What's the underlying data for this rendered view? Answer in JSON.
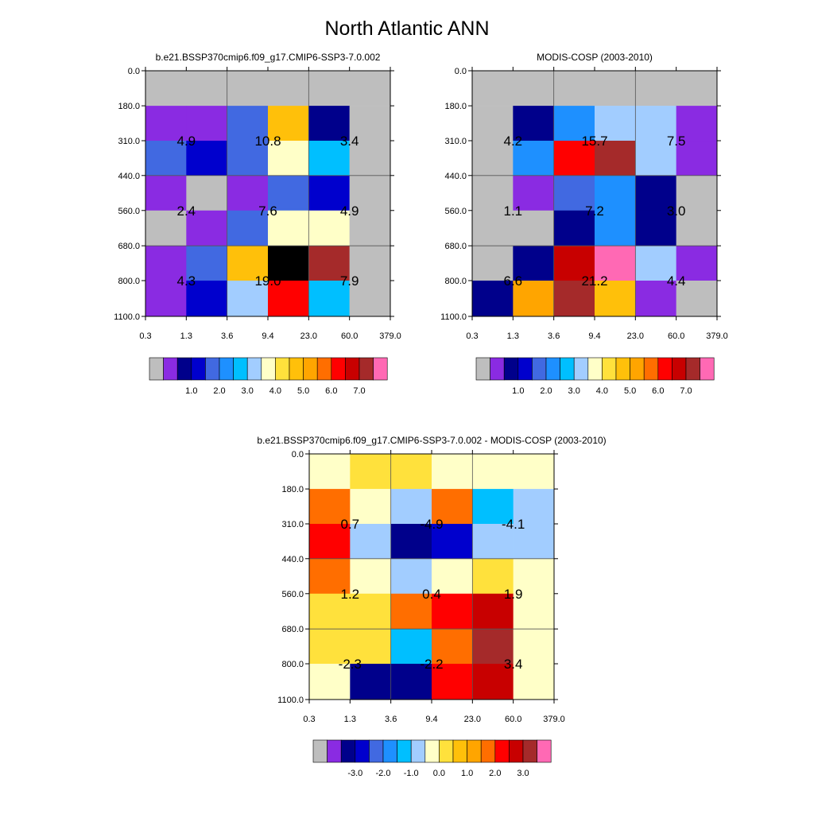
{
  "title": "North Atlantic ANN",
  "chart_data": [
    {
      "type": "heatmap",
      "title": "b.e21.BSSP370cmip6.f09_g17.CMIP6-SSP3-7.0.002",
      "x_ticks": [
        "0.3",
        "1.3",
        "3.6",
        "9.4",
        "23.0",
        "60.0",
        "379.0"
      ],
      "y_ticks": [
        "0.0",
        "180.0",
        "310.0",
        "440.0",
        "560.0",
        "680.0",
        "800.0",
        "1100.0"
      ],
      "cells": [
        [
          0,
          0,
          0,
          0,
          0,
          0
        ],
        [
          1,
          1,
          4,
          10,
          2,
          0
        ],
        [
          4,
          3,
          4,
          8,
          6,
          0
        ],
        [
          1,
          0,
          1,
          4,
          3,
          0
        ],
        [
          0,
          1,
          4,
          8,
          8,
          0
        ],
        [
          1,
          4,
          10,
          18,
          15,
          0
        ],
        [
          1,
          3,
          7,
          13,
          6,
          0
        ]
      ],
      "annotations": [
        {
          "row": 1,
          "col": 0,
          "text": "4.9"
        },
        {
          "row": 1,
          "col": 2,
          "text": "10.8"
        },
        {
          "row": 1,
          "col": 4,
          "text": "3.4"
        },
        {
          "row": 3,
          "col": 0,
          "text": "2.4"
        },
        {
          "row": 3,
          "col": 2,
          "text": "7.6"
        },
        {
          "row": 3,
          "col": 4,
          "text": "4.9"
        },
        {
          "row": 5,
          "col": 0,
          "text": "4.3"
        },
        {
          "row": 5,
          "col": 2,
          "text": "19.0"
        },
        {
          "row": 5,
          "col": 4,
          "text": "7.9"
        }
      ],
      "colorbar_labels": [
        "1.0",
        "2.0",
        "3.0",
        "4.0",
        "5.0",
        "6.0",
        "7.0"
      ]
    },
    {
      "type": "heatmap",
      "title": "MODIS-COSP (2003-2010)",
      "x_ticks": [
        "0.3",
        "1.3",
        "3.6",
        "9.4",
        "23.0",
        "60.0",
        "379.0"
      ],
      "y_ticks": [
        "0.0",
        "180.0",
        "310.0",
        "440.0",
        "560.0",
        "680.0",
        "800.0",
        "1100.0"
      ],
      "cells": [
        [
          0,
          0,
          0,
          0,
          0,
          0
        ],
        [
          0,
          2,
          5,
          7,
          7,
          1
        ],
        [
          0,
          5,
          13,
          15,
          7,
          1
        ],
        [
          0,
          1,
          4,
          5,
          2,
          0
        ],
        [
          0,
          0,
          2,
          5,
          2,
          0
        ],
        [
          0,
          2,
          14,
          16,
          7,
          1
        ],
        [
          2,
          11,
          15,
          10,
          1,
          0
        ]
      ],
      "annotations": [
        {
          "row": 1,
          "col": 0,
          "text": "4.2"
        },
        {
          "row": 1,
          "col": 2,
          "text": "15.7"
        },
        {
          "row": 1,
          "col": 4,
          "text": "7.5"
        },
        {
          "row": 3,
          "col": 0,
          "text": "1.1"
        },
        {
          "row": 3,
          "col": 2,
          "text": "7.2"
        },
        {
          "row": 3,
          "col": 4,
          "text": "3.0"
        },
        {
          "row": 5,
          "col": 0,
          "text": "6.6"
        },
        {
          "row": 5,
          "col": 2,
          "text": "21.2"
        },
        {
          "row": 5,
          "col": 4,
          "text": "4.4"
        }
      ],
      "colorbar_labels": [
        "1.0",
        "2.0",
        "3.0",
        "4.0",
        "5.0",
        "6.0",
        "7.0"
      ]
    },
    {
      "type": "heatmap",
      "title": "b.e21.BSSP370cmip6.f09_g17.CMIP6-SSP3-7.0.002 - MODIS-COSP (2003-2010)",
      "x_ticks": [
        "0.3",
        "1.3",
        "3.6",
        "9.4",
        "23.0",
        "60.0",
        "379.0"
      ],
      "y_ticks": [
        "0.0",
        "180.0",
        "310.0",
        "440.0",
        "560.0",
        "680.0",
        "800.0",
        "1100.0"
      ],
      "cells": [
        [
          8,
          9,
          9,
          8,
          8,
          8
        ],
        [
          12,
          8,
          7,
          12,
          6,
          7
        ],
        [
          13,
          7,
          2,
          3,
          7,
          7
        ],
        [
          12,
          8,
          7,
          8,
          9,
          8
        ],
        [
          9,
          9,
          12,
          13,
          14,
          8
        ],
        [
          9,
          9,
          6,
          12,
          15,
          8
        ],
        [
          8,
          2,
          2,
          13,
          14,
          8
        ]
      ],
      "annotations": [
        {
          "row": 1,
          "col": 0,
          "text": "0.7"
        },
        {
          "row": 1,
          "col": 2,
          "text": "-4.9"
        },
        {
          "row": 1,
          "col": 4,
          "text": "-4.1"
        },
        {
          "row": 3,
          "col": 0,
          "text": "1.2"
        },
        {
          "row": 3,
          "col": 2,
          "text": "0.4"
        },
        {
          "row": 3,
          "col": 4,
          "text": "1.9"
        },
        {
          "row": 5,
          "col": 0,
          "text": "-2.3"
        },
        {
          "row": 5,
          "col": 2,
          "text": "-2.2"
        },
        {
          "row": 5,
          "col": 4,
          "text": "3.4"
        }
      ],
      "colorbar_labels": [
        "-3.0",
        "-2.0",
        "-1.0",
        "0.0",
        "1.0",
        "2.0",
        "3.0"
      ]
    }
  ],
  "palette": [
    "#bebebe",
    "#8a2be2",
    "#00008b",
    "#0000cd",
    "#4169e1",
    "#1e90ff",
    "#00bfff",
    "#a2cdff",
    "#ffffc8",
    "#ffe13c",
    "#ffc00a",
    "#ffa500",
    "#ff6e00",
    "#ff0000",
    "#c80000",
    "#a52a2a",
    "#ff69b4"
  ]
}
